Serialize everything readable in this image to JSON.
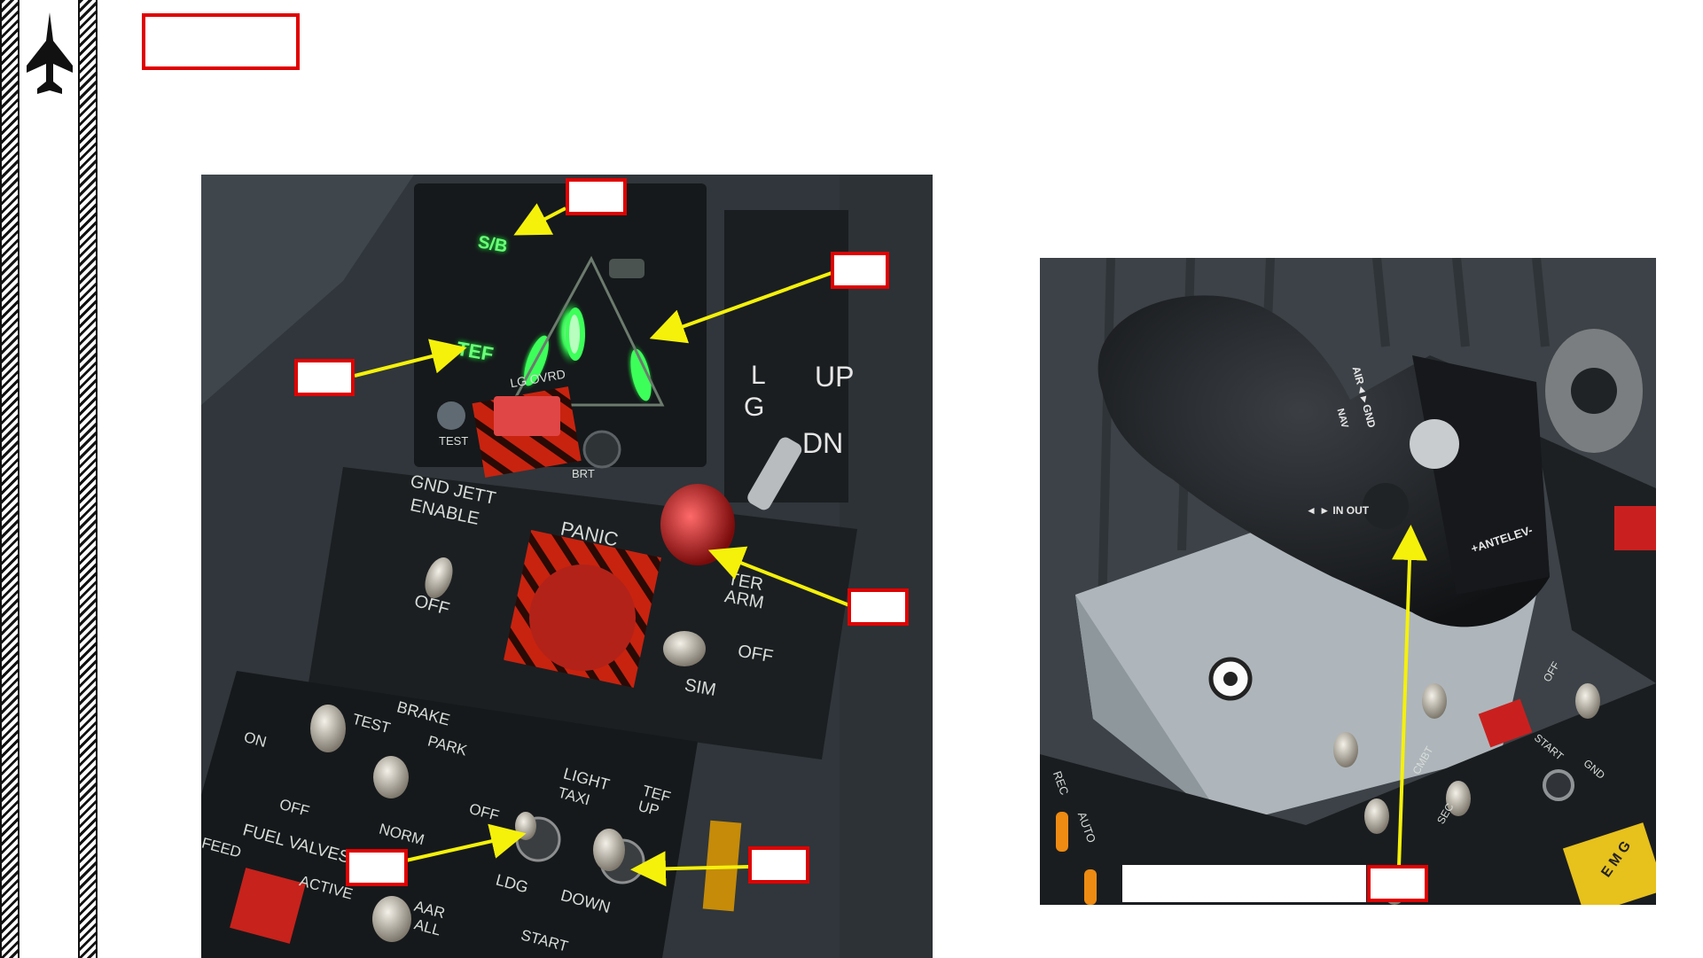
{
  "title_callout": "",
  "sidebar": {
    "icon": "fighter-jet-icon"
  },
  "panel": {
    "speedbrake_label": "S/B",
    "tef_label": "TEF",
    "lg_ovrd_label": "LG OVRD",
    "test_label": "TEST",
    "brt_label": "BRT",
    "lg_l": "L",
    "lg_g": "G",
    "up_label": "UP",
    "dn_label": "DN",
    "gnd_jett_label": "GND JETT",
    "enable_label": "ENABLE",
    "off_label": "OFF",
    "panic_label": "PANIC",
    "master_arm_label": "TER\nARM",
    "off2_label": "OFF",
    "sim_label": "SIM",
    "brake_label": "BRAKE",
    "brake_test_label": "TEST",
    "brake_park_label": "PARK",
    "brake_on_label": "ON",
    "brake_off_label": "OFF",
    "brake_norm_label": "NORM",
    "light_label": "LIGHT",
    "taxi_label": "TAXI",
    "light_off_label": "OFF",
    "ldg_label": "LDG",
    "tef_up_label": "TEF\nUP",
    "down_label": "DOWN",
    "fuel_valves_label": "FUEL VALVES",
    "feed_label": "FEED",
    "active_label": "ACTIVE",
    "aar_label": "AAR",
    "all_label": "ALL",
    "start_label": "START"
  },
  "throttle": {
    "air_gnd_label": "AIR◄►GND",
    "nav_label": "NAV",
    "in_out_label": "◄ ► IN OUT",
    "antelev_label": "+ANTELEV-",
    "rec_label": "REC",
    "auto_label": "AUTO",
    "off_label": "OFF",
    "cmbt_label": "CMBT",
    "sec_label": "SEC",
    "start_label": "START",
    "gnd_label": "GND",
    "emerg_label": "E M G"
  },
  "callouts": [
    "",
    "",
    "",
    "",
    "",
    "",
    ""
  ],
  "colors": {
    "callout_border": "#e00000",
    "arrow": "#f5f10a",
    "indicator_green": "#3dff5a"
  }
}
